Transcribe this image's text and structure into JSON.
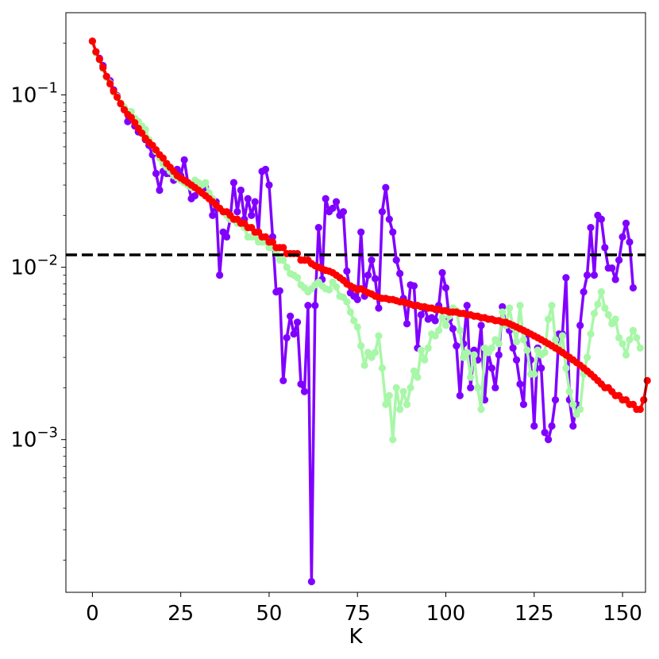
{
  "chart_data": {
    "type": "line",
    "title": "",
    "xlabel": "K",
    "ylabel": "",
    "xlim": [
      -7.5,
      156.5
    ],
    "ylim": [
      0.00013,
      0.3
    ],
    "yscale": "log",
    "grid": false,
    "xticks": [
      {
        "value": 0,
        "label": "0"
      },
      {
        "value": 25,
        "label": "25"
      },
      {
        "value": 50,
        "label": "50"
      },
      {
        "value": 75,
        "label": "75"
      },
      {
        "value": 100,
        "label": "100"
      },
      {
        "value": 125,
        "label": "125"
      },
      {
        "value": 150,
        "label": "150"
      }
    ],
    "yticks": [
      {
        "value": 0.1,
        "base": "10",
        "exp": "−1"
      },
      {
        "value": 0.01,
        "base": "10",
        "exp": "−2"
      },
      {
        "value": 0.001,
        "base": "10",
        "exp": "−3"
      }
    ],
    "reference_line": {
      "y": 0.0118,
      "style": "dashed",
      "color": "#000000"
    },
    "series": [
      {
        "color": "#8000ff",
        "values": [
          0.205,
          0.178,
          0.163,
          0.148,
          0.128,
          0.121,
          0.107,
          0.099,
          0.089,
          0.084,
          0.07,
          0.075,
          0.066,
          0.061,
          0.06,
          0.055,
          0.051,
          0.045,
          0.035,
          0.028,
          0.036,
          0.035,
          0.035,
          0.032,
          0.037,
          0.034,
          0.042,
          0.031,
          0.025,
          0.026,
          0.028,
          0.027,
          0.029,
          0.026,
          0.02,
          0.024,
          0.009,
          0.016,
          0.015,
          0.019,
          0.031,
          0.021,
          0.028,
          0.019,
          0.025,
          0.02,
          0.024,
          0.016,
          0.036,
          0.037,
          0.03,
          0.015,
          0.0072,
          0.0073,
          0.0022,
          0.0039,
          0.0052,
          0.0041,
          0.0048,
          0.0021,
          0.0019,
          0.006,
          0.00015,
          0.006,
          0.017,
          0.0085,
          0.025,
          0.021,
          0.022,
          0.024,
          0.02,
          0.021,
          0.0095,
          0.0071,
          0.0068,
          0.0065,
          0.016,
          0.0068,
          0.009,
          0.011,
          0.0086,
          0.0058,
          0.021,
          0.029,
          0.019,
          0.016,
          0.011,
          0.0092,
          0.0066,
          0.0047,
          0.0079,
          0.0078,
          0.0034,
          0.0053,
          0.0058,
          0.005,
          0.0051,
          0.0049,
          0.006,
          0.0093,
          0.0076,
          0.005,
          0.0044,
          0.0035,
          0.0018,
          0.0036,
          0.006,
          0.002,
          0.0033,
          0.0029,
          0.0046,
          0.0017,
          0.0032,
          0.0026,
          0.002,
          0.0031,
          0.0059,
          0.0046,
          0.0043,
          0.0034,
          0.0029,
          0.0021,
          0.0016,
          0.0042,
          0.0029,
          0.0012,
          0.0034,
          0.0026,
          0.0011,
          0.001,
          0.0012,
          0.0017,
          0.0041,
          0.0041,
          0.0087,
          0.0017,
          0.0012,
          0.0016,
          0.0046,
          0.0072,
          0.009,
          0.017,
          0.009,
          0.02,
          0.019,
          0.013,
          0.0099,
          0.0099,
          0.0085,
          0.011,
          0.015,
          0.018,
          0.014,
          0.0076
        ]
      },
      {
        "color": "#a8f7a8",
        "values": [
          0.205,
          0.175,
          0.16,
          0.142,
          0.126,
          0.117,
          0.104,
          0.098,
          0.09,
          0.085,
          0.08,
          0.08,
          0.073,
          0.07,
          0.066,
          0.063,
          0.055,
          0.051,
          0.047,
          0.043,
          0.04,
          0.038,
          0.036,
          0.034,
          0.033,
          0.032,
          0.031,
          0.03,
          0.029,
          0.032,
          0.031,
          0.03,
          0.031,
          0.027,
          0.025,
          0.023,
          0.022,
          0.021,
          0.02,
          0.019,
          0.019,
          0.018,
          0.018,
          0.017,
          0.015,
          0.015,
          0.015,
          0.014,
          0.014,
          0.014,
          0.013,
          0.013,
          0.012,
          0.011,
          0.011,
          0.01,
          0.0092,
          0.009,
          0.0087,
          0.0079,
          0.0076,
          0.0072,
          0.0075,
          0.0079,
          0.0082,
          0.0078,
          0.0075,
          0.0074,
          0.0082,
          0.0077,
          0.0068,
          0.0067,
          0.0063,
          0.0055,
          0.0049,
          0.0045,
          0.0035,
          0.0027,
          0.0032,
          0.003,
          0.0032,
          0.004,
          0.0026,
          0.0016,
          0.0018,
          0.001,
          0.002,
          0.0015,
          0.0019,
          0.0016,
          0.002,
          0.0025,
          0.0023,
          0.0033,
          0.0029,
          0.0034,
          0.0041,
          0.004,
          0.0043,
          0.0051,
          0.0046,
          0.0052,
          0.0058,
          0.0056,
          0.0043,
          0.003,
          0.0032,
          0.0023,
          0.0031,
          0.002,
          0.0015,
          0.0034,
          0.0032,
          0.0034,
          0.0038,
          0.0036,
          0.0055,
          0.0046,
          0.0058,
          0.0045,
          0.0037,
          0.006,
          0.0038,
          0.0033,
          0.0024,
          0.0024,
          0.0033,
          0.0031,
          0.0032,
          0.005,
          0.006,
          0.0038,
          0.0034,
          0.004,
          0.0026,
          0.0019,
          0.0016,
          0.0014,
          0.0015,
          0.0024,
          0.003,
          0.0041,
          0.0054,
          0.0061,
          0.0072,
          0.0058,
          0.0053,
          0.0047,
          0.005,
          0.0039,
          0.0036,
          0.0031,
          0.0038,
          0.0043,
          0.0039,
          0.0034
        ]
      },
      {
        "color": "#ff0000",
        "values": [
          0.205,
          0.178,
          0.161,
          0.144,
          0.128,
          0.116,
          0.105,
          0.097,
          0.089,
          0.082,
          0.077,
          0.074,
          0.069,
          0.064,
          0.06,
          0.056,
          0.053,
          0.051,
          0.048,
          0.045,
          0.043,
          0.04,
          0.038,
          0.036,
          0.034,
          0.033,
          0.032,
          0.031,
          0.03,
          0.029,
          0.028,
          0.027,
          0.026,
          0.025,
          0.024,
          0.023,
          0.022,
          0.021,
          0.021,
          0.02,
          0.019,
          0.019,
          0.018,
          0.018,
          0.017,
          0.017,
          0.016,
          0.016,
          0.015,
          0.015,
          0.014,
          0.014,
          0.013,
          0.013,
          0.013,
          0.012,
          0.012,
          0.012,
          0.012,
          0.011,
          0.011,
          0.011,
          0.0105,
          0.0102,
          0.01,
          0.0098,
          0.0096,
          0.0095,
          0.0093,
          0.009,
          0.0087,
          0.0084,
          0.008,
          0.0078,
          0.0076,
          0.0074,
          0.0075,
          0.0073,
          0.0071,
          0.007,
          0.0068,
          0.0067,
          0.0066,
          0.0066,
          0.0065,
          0.0065,
          0.0064,
          0.0063,
          0.0063,
          0.0062,
          0.0061,
          0.006,
          0.006,
          0.0059,
          0.0059,
          0.0058,
          0.0058,
          0.0057,
          0.0057,
          0.0056,
          0.0056,
          0.0055,
          0.0055,
          0.0055,
          0.0054,
          0.0054,
          0.0053,
          0.0053,
          0.0052,
          0.0052,
          0.0051,
          0.0051,
          0.005,
          0.005,
          0.0049,
          0.0049,
          0.0048,
          0.0048,
          0.0047,
          0.0046,
          0.0045,
          0.0044,
          0.0043,
          0.0042,
          0.0041,
          0.004,
          0.0039,
          0.0038,
          0.0037,
          0.0036,
          0.0035,
          0.0034,
          0.0033,
          0.0032,
          0.0031,
          0.003,
          0.0029,
          0.0028,
          0.0027,
          0.0026,
          0.0025,
          0.0024,
          0.0023,
          0.0022,
          0.0021,
          0.002,
          0.002,
          0.0019,
          0.0018,
          0.0018,
          0.0017,
          0.0017,
          0.0016,
          0.0016,
          0.0015,
          0.0015,
          0.0017,
          0.0022
        ]
      }
    ]
  }
}
